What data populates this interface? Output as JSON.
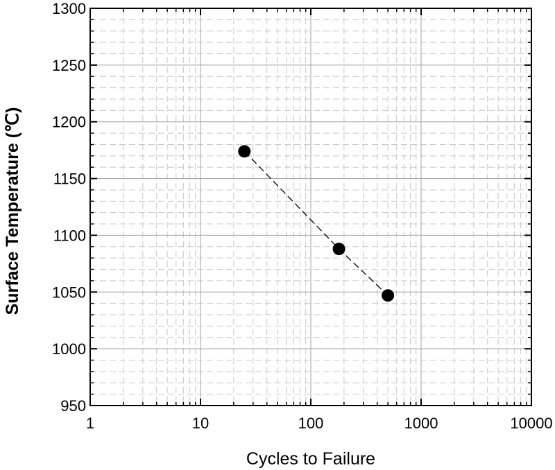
{
  "chart_data": {
    "type": "scatter",
    "title": "",
    "xlabel": "Cycles to Failure",
    "ylabel": "Surface Temperature (℃)",
    "x_scale": "log",
    "xlim": [
      1,
      10000
    ],
    "ylim": [
      950,
      1300
    ],
    "x_ticks": [
      1,
      10,
      100,
      1000,
      10000
    ],
    "x_tick_labels": [
      "1",
      "10",
      "100",
      "1000",
      "10000"
    ],
    "y_ticks": [
      950,
      1000,
      1050,
      1100,
      1150,
      1200,
      1250,
      1300
    ],
    "y_tick_labels": [
      "950",
      "1000",
      "1050",
      "1100",
      "1150",
      "1200",
      "1250",
      "1300"
    ],
    "grid": true,
    "series": [
      {
        "x": [
          25,
          180,
          500
        ],
        "y": [
          1174,
          1088,
          1047
        ],
        "marker": "filled-circle",
        "line_style": "dashed",
        "color": "#000000"
      }
    ]
  }
}
